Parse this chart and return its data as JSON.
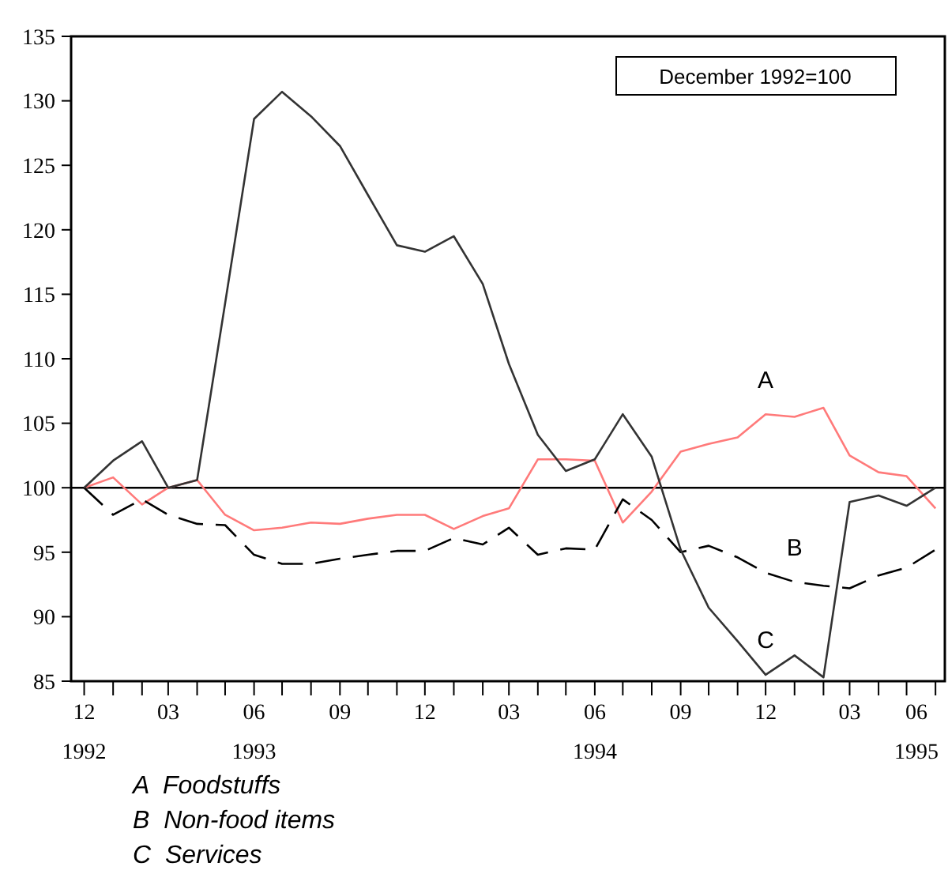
{
  "chart_data": {
    "type": "line",
    "x": [
      "1992-12",
      "1993-01",
      "1993-02",
      "1993-03",
      "1993-04",
      "1993-05",
      "1993-06",
      "1993-07",
      "1993-08",
      "1993-09",
      "1993-10",
      "1993-11",
      "1993-12",
      "1994-01",
      "1994-02",
      "1994-03",
      "1994-04",
      "1994-05",
      "1994-06",
      "1994-07",
      "1994-08",
      "1994-09",
      "1994-10",
      "1994-11",
      "1994-12",
      "1995-01",
      "1995-02",
      "1995-03",
      "1995-04",
      "1995-05",
      "1995-06"
    ],
    "series": [
      {
        "name": "A",
        "color": "#ff7a7a",
        "line_style": "solid",
        "values": [
          100,
          100.8,
          98.7,
          100,
          100.6,
          97.9,
          96.7,
          96.9,
          97.3,
          97.2,
          97.6,
          97.9,
          97.9,
          96.8,
          97.8,
          98.4,
          102.2,
          102.2,
          102.1,
          97.3,
          99.7,
          102.8,
          103.4,
          103.9,
          105.7,
          105.5,
          106.2,
          102.5,
          101.2,
          100.9,
          98.4
        ]
      },
      {
        "name": "B",
        "color": "#000000",
        "line_style": "dashed",
        "values": [
          100,
          97.9,
          99.1,
          97.9,
          97.2,
          97.1,
          94.8,
          94.1,
          94.1,
          94.5,
          94.8,
          95.1,
          95.1,
          96.1,
          95.6,
          96.9,
          94.8,
          95.3,
          95.2,
          99.1,
          97.5,
          95,
          95.5,
          94.6,
          93.4,
          92.7,
          92.4,
          92.2,
          93.2,
          93.8,
          95.2
        ]
      },
      {
        "name": "C",
        "color": "#333333",
        "line_style": "solid",
        "values": [
          100,
          102.1,
          103.6,
          100,
          100.6,
          114.3,
          128.6,
          130.7,
          128.8,
          126.5,
          122.7,
          118.8,
          118.3,
          119.5,
          115.8,
          109.6,
          104.1,
          101.3,
          102.2,
          105.7,
          102.4,
          95.2,
          90.7,
          88.1,
          85.5,
          87,
          85.3,
          98.9,
          99.4,
          98.6,
          100
        ]
      }
    ],
    "xlim": [
      "1992-11-17",
      "1995-06-11"
    ],
    "xticks": [
      {
        "value": "1992-12",
        "label": "12\n1992"
      },
      {
        "value": "1993-01",
        "label": null
      },
      {
        "value": "1993-02",
        "label": null
      },
      {
        "value": "1993-03",
        "label": "03"
      },
      {
        "value": "1993-04",
        "label": null
      },
      {
        "value": "1993-05",
        "label": null
      },
      {
        "value": "1993-06",
        "label": "06\n1993"
      },
      {
        "value": "1993-07",
        "label": null
      },
      {
        "value": "1993-08",
        "label": null
      },
      {
        "value": "1993-09",
        "label": "09"
      },
      {
        "value": "1993-10",
        "label": null
      },
      {
        "value": "1993-11",
        "label": null
      },
      {
        "value": "1993-12",
        "label": "12"
      },
      {
        "value": "1994-01",
        "label": null
      },
      {
        "value": "1994-02",
        "label": null
      },
      {
        "value": "1994-03",
        "label": "03"
      },
      {
        "value": "1994-04",
        "label": null
      },
      {
        "value": "1994-05",
        "label": null
      },
      {
        "value": "1994-06",
        "label": "06\n1994"
      },
      {
        "value": "1994-07",
        "label": null
      },
      {
        "value": "1994-08",
        "label": null
      },
      {
        "value": "1994-09",
        "label": "09"
      },
      {
        "value": "1994-10",
        "label": null
      },
      {
        "value": "1994-11",
        "label": null
      },
      {
        "value": "1994-12",
        "label": "12"
      },
      {
        "value": "1995-01",
        "label": null
      },
      {
        "value": "1995-02",
        "label": null
      },
      {
        "value": "1995-03",
        "label": "03"
      },
      {
        "value": "1995-04",
        "label": null
      },
      {
        "value": "1995-05",
        "label": null
      },
      {
        "value": "1995-06",
        "label": "06\n1995"
      }
    ],
    "ylim": [
      85,
      135
    ],
    "yticks": [
      85,
      90,
      95,
      100,
      105,
      110,
      115,
      120,
      125,
      130,
      135
    ],
    "ref_lines": [
      {
        "axis": "y",
        "value": 100,
        "color": "#000000"
      }
    ],
    "grid": false,
    "annotations": [
      "December 1992=100",
      "A  Foodstuffs",
      "B  Non-food items",
      "C  Services"
    ]
  }
}
